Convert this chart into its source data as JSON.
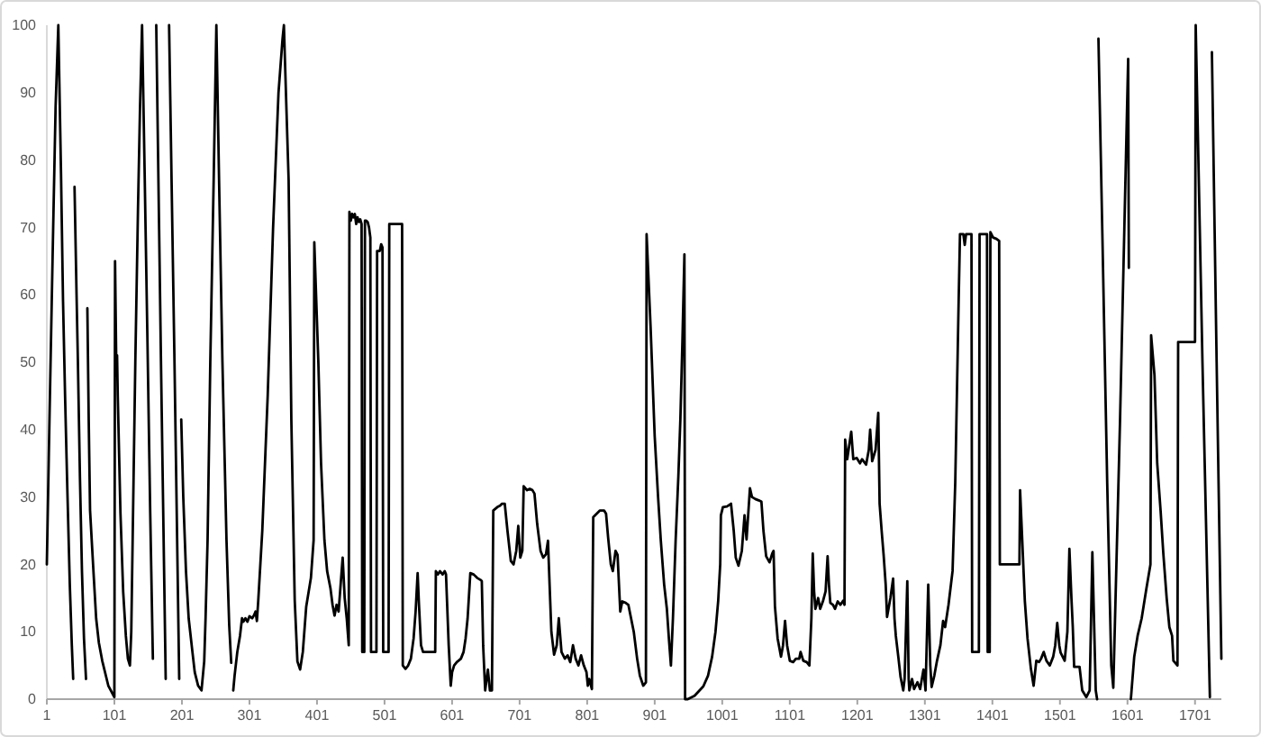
{
  "chart_data": {
    "type": "line",
    "color": "#000000",
    "x": [
      1,
      5,
      10,
      14,
      18,
      22,
      25,
      28,
      31,
      35,
      38,
      40,
      41,
      42,
      45,
      47,
      50,
      53,
      56,
      59,
      60,
      61,
      63,
      65,
      70,
      74,
      78,
      83,
      92,
      101,
      102,
      104,
      105,
      106,
      110,
      114,
      118,
      121,
      124,
      126,
      129,
      132,
      136,
      139,
      142,
      146,
      150,
      154,
      158,
      160,
      163,
      170,
      177,
      179,
      182,
      190,
      197,
      198,
      200,
      203,
      207,
      211,
      216,
      220,
      225,
      230,
      234,
      236,
      239,
      243,
      248,
      252,
      256,
      261,
      267,
      271,
      274,
      275,
      277,
      279,
      283,
      287,
      290,
      292,
      295,
      298,
      301,
      305,
      308,
      310,
      312,
      314,
      320,
      328,
      336,
      344,
      350,
      352,
      355,
      359,
      363,
      368,
      372,
      376,
      380,
      385,
      392,
      396,
      397,
      403,
      407,
      412,
      416,
      421,
      424,
      427,
      430,
      433,
      436,
      439,
      442,
      445,
      448,
      449,
      451,
      453,
      455,
      457,
      459,
      461,
      463,
      465,
      467,
      468,
      471,
      472,
      474,
      476,
      478,
      480,
      481,
      489,
      490,
      494,
      496,
      498,
      499,
      507,
      508,
      527,
      528,
      532,
      536,
      540,
      544,
      547,
      550,
      552,
      555,
      558,
      563,
      568,
      572,
      576,
      577,
      580,
      583,
      587,
      590,
      592,
      596,
      599,
      601,
      604,
      608,
      614,
      618,
      621,
      624,
      628,
      633,
      638,
      643,
      645,
      647,
      650,
      654,
      657,
      660,
      662,
      668,
      672,
      675,
      679,
      683,
      688,
      692,
      696,
      699,
      702,
      705,
      707,
      712,
      716,
      720,
      723,
      727,
      732,
      736,
      740,
      743,
      745,
      748,
      752,
      756,
      759,
      763,
      768,
      772,
      776,
      780,
      784,
      788,
      792,
      796,
      800,
      802,
      804,
      808,
      810,
      815,
      820,
      826,
      829,
      832,
      836,
      839,
      843,
      846,
      850,
      853,
      858,
      862,
      866,
      870,
      875,
      879,
      884,
      888,
      889,
      895,
      901,
      906,
      910,
      915,
      919,
      922,
      925,
      928,
      932,
      936,
      939,
      942,
      945,
      946,
      950,
      960,
      973,
      980,
      986,
      991,
      995,
      998,
      999,
      1002,
      1008,
      1014,
      1018,
      1021,
      1025,
      1030,
      1034,
      1037,
      1042,
      1045,
      1050,
      1055,
      1059,
      1062,
      1066,
      1071,
      1075,
      1077,
      1079,
      1083,
      1088,
      1091,
      1094,
      1097,
      1101,
      1106,
      1110,
      1115,
      1117,
      1121,
      1126,
      1130,
      1133,
      1135,
      1137,
      1139,
      1143,
      1146,
      1150,
      1154,
      1157,
      1159,
      1161,
      1165,
      1168,
      1172,
      1176,
      1180,
      1182,
      1183,
      1186,
      1192,
      1195,
      1200,
      1205,
      1208,
      1214,
      1218,
      1220,
      1223,
      1228,
      1232,
      1234,
      1237,
      1240,
      1243,
      1245,
      1250,
      1254,
      1256,
      1258,
      1262,
      1265,
      1269,
      1271,
      1275,
      1277,
      1278,
      1282,
      1285,
      1290,
      1294,
      1299,
      1302,
      1306,
      1309,
      1311,
      1315,
      1319,
      1324,
      1328,
      1331,
      1336,
      1342,
      1346,
      1351,
      1353,
      1358,
      1360,
      1362,
      1370,
      1371,
      1381,
      1382,
      1393,
      1394,
      1397,
      1398,
      1402,
      1407,
      1411,
      1412,
      1420,
      1430,
      1441,
      1442,
      1445,
      1449,
      1453,
      1458,
      1462,
      1466,
      1470,
      1473,
      1477,
      1481,
      1486,
      1491,
      1494,
      1497,
      1500,
      1502,
      1508,
      1512,
      1515,
      1518,
      1520,
      1522,
      1530,
      1534,
      1540,
      1545,
      1549,
      1554,
      1556,
      1557,
      1558,
      1564,
      1571,
      1577,
      1580,
      1590,
      1602,
      1603,
      1604,
      1606,
      1611,
      1616,
      1622,
      1629,
      1635,
      1636,
      1641,
      1645,
      1650,
      1654,
      1659,
      1663,
      1667,
      1669,
      1675,
      1676,
      1690,
      1701,
      1702,
      1712,
      1723,
      1724,
      1726,
      1733,
      1740
    ],
    "values": [
      20,
      42,
      68,
      88,
      100,
      78,
      59,
      45,
      32.5,
      17,
      8,
      3,
      null,
      76,
      60,
      50,
      33,
      19,
      9,
      3,
      null,
      58,
      41.5,
      28,
      19,
      12,
      8.4,
      5.7,
      2,
      0.3,
      65,
      48,
      51,
      45,
      27.6,
      16,
      9.4,
      6,
      5,
      10,
      30,
      50,
      73,
      88,
      100,
      77,
      53,
      28,
      6,
      null,
      100,
      50,
      3,
      null,
      100,
      50,
      3,
      null,
      41.5,
      30,
      19,
      12,
      7.5,
      4,
      2,
      1.3,
      5.6,
      12,
      23.6,
      50,
      77,
      100,
      77,
      50,
      23.6,
      11,
      5.4,
      null,
      1.3,
      3.5,
      7,
      9.4,
      12,
      11.5,
      12,
      11.5,
      12.3,
      12,
      12.5,
      13,
      11.6,
      14.6,
      25,
      45,
      70,
      90,
      98,
      100,
      90,
      77,
      41.5,
      14.7,
      5.6,
      4.4,
      7,
      13.7,
      18,
      23.6,
      67.8,
      50,
      35,
      23.6,
      19,
      16.4,
      14,
      12.4,
      14,
      13,
      17,
      21,
      15,
      12,
      8,
      72.3,
      71,
      72,
      71.5,
      72,
      70.5,
      71.5,
      70.8,
      71.2,
      70.5,
      7,
      7,
      71,
      71,
      70.8,
      70,
      68.5,
      7,
      7,
      66.5,
      66.5,
      67.5,
      67,
      7,
      7,
      70.5,
      70.5,
      5,
      4.5,
      5,
      6,
      9,
      13,
      18.7,
      14,
      8,
      7,
      7,
      7,
      7,
      7,
      19,
      18.5,
      19,
      18.5,
      19,
      18.5,
      8,
      2,
      4,
      5,
      5.5,
      6,
      7,
      9,
      12,
      18.7,
      18.5,
      18,
      17.7,
      17.5,
      8,
      1.3,
      4.4,
      1.3,
      1.3,
      28,
      28.5,
      28.7,
      29,
      29,
      25,
      20.5,
      20,
      22,
      25.7,
      21,
      22,
      31.6,
      31,
      31.2,
      31,
      30.5,
      26,
      22,
      21,
      21.5,
      23.5,
      18,
      10,
      6.6,
      8,
      12,
      7,
      6,
      6.5,
      5.5,
      8,
      6,
      5,
      6.5,
      5,
      4,
      2,
      3,
      1.5,
      27,
      27.5,
      28,
      28,
      27.5,
      24,
      20,
      19,
      22,
      21.4,
      13,
      14.5,
      14.3,
      14,
      12,
      10,
      6,
      3.5,
      2,
      2.5,
      69,
      55,
      39,
      30,
      23.6,
      17,
      13.4,
      9,
      5,
      12,
      23.6,
      33,
      41.5,
      53,
      66,
      0,
      0,
      0.5,
      1.9,
      3.5,
      6.3,
      10,
      14.6,
      20,
      27.3,
      28.5,
      28.6,
      29,
      25,
      21,
      19.8,
      22,
      27.3,
      23.7,
      31.3,
      30,
      29.7,
      29.5,
      29.3,
      25,
      21.2,
      20.3,
      21.6,
      22,
      13.8,
      9,
      6.3,
      8,
      11.6,
      8,
      5.7,
      5.5,
      6,
      6,
      7,
      5.7,
      5.5,
      5,
      12,
      21.6,
      16,
      13.4,
      15,
      13.4,
      14.5,
      16,
      21.2,
      17,
      14.3,
      14,
      13.4,
      14.5,
      14,
      14.6,
      14,
      38.5,
      35.6,
      39.7,
      35.6,
      35.8,
      35,
      35.6,
      34.8,
      37,
      40,
      35.3,
      37,
      42.5,
      29,
      25,
      21.3,
      17,
      12.2,
      15,
      17.9,
      12,
      9.4,
      6,
      3.3,
      1.3,
      3,
      17.5,
      3,
      1.3,
      3,
      1.5,
      2.5,
      1.5,
      4.4,
      1.3,
      17,
      5,
      1.8,
      3.5,
      5.7,
      8,
      11.6,
      10.7,
      14,
      19,
      32.2,
      59,
      69,
      69,
      67.4,
      69,
      69,
      7,
      7,
      69,
      69,
      7,
      7,
      69.3,
      68.5,
      68.3,
      68,
      20,
      20,
      20,
      20,
      31,
      24,
      14.6,
      9,
      4.5,
      2,
      5.7,
      5.5,
      6,
      7,
      5.7,
      5,
      6.3,
      8,
      11.3,
      8,
      6.9,
      5.7,
      10,
      22.3,
      15,
      10.7,
      4.8,
      4.8,
      1.3,
      0.3,
      1.3,
      21.8,
      1.3,
      0,
      null,
      98,
      68,
      32,
      5,
      1.7,
      41.5,
      95,
      64,
      null,
      0,
      6.3,
      9.4,
      12,
      16.4,
      20,
      54,
      48,
      35,
      28,
      21.7,
      15,
      10.7,
      9.4,
      5.7,
      5,
      53,
      53,
      53,
      100,
      50,
      0.3,
      null,
      96,
      50,
      6
    ],
    "xlim": [
      1,
      1740
    ],
    "ylim": [
      0,
      100
    ],
    "xticks": [
      1,
      101,
      201,
      301,
      401,
      501,
      601,
      701,
      801,
      901,
      1001,
      1101,
      1201,
      1301,
      1401,
      1501,
      1601,
      1701
    ],
    "yticks": [
      0,
      10,
      20,
      30,
      40,
      50,
      60,
      70,
      80,
      90,
      100
    ]
  }
}
